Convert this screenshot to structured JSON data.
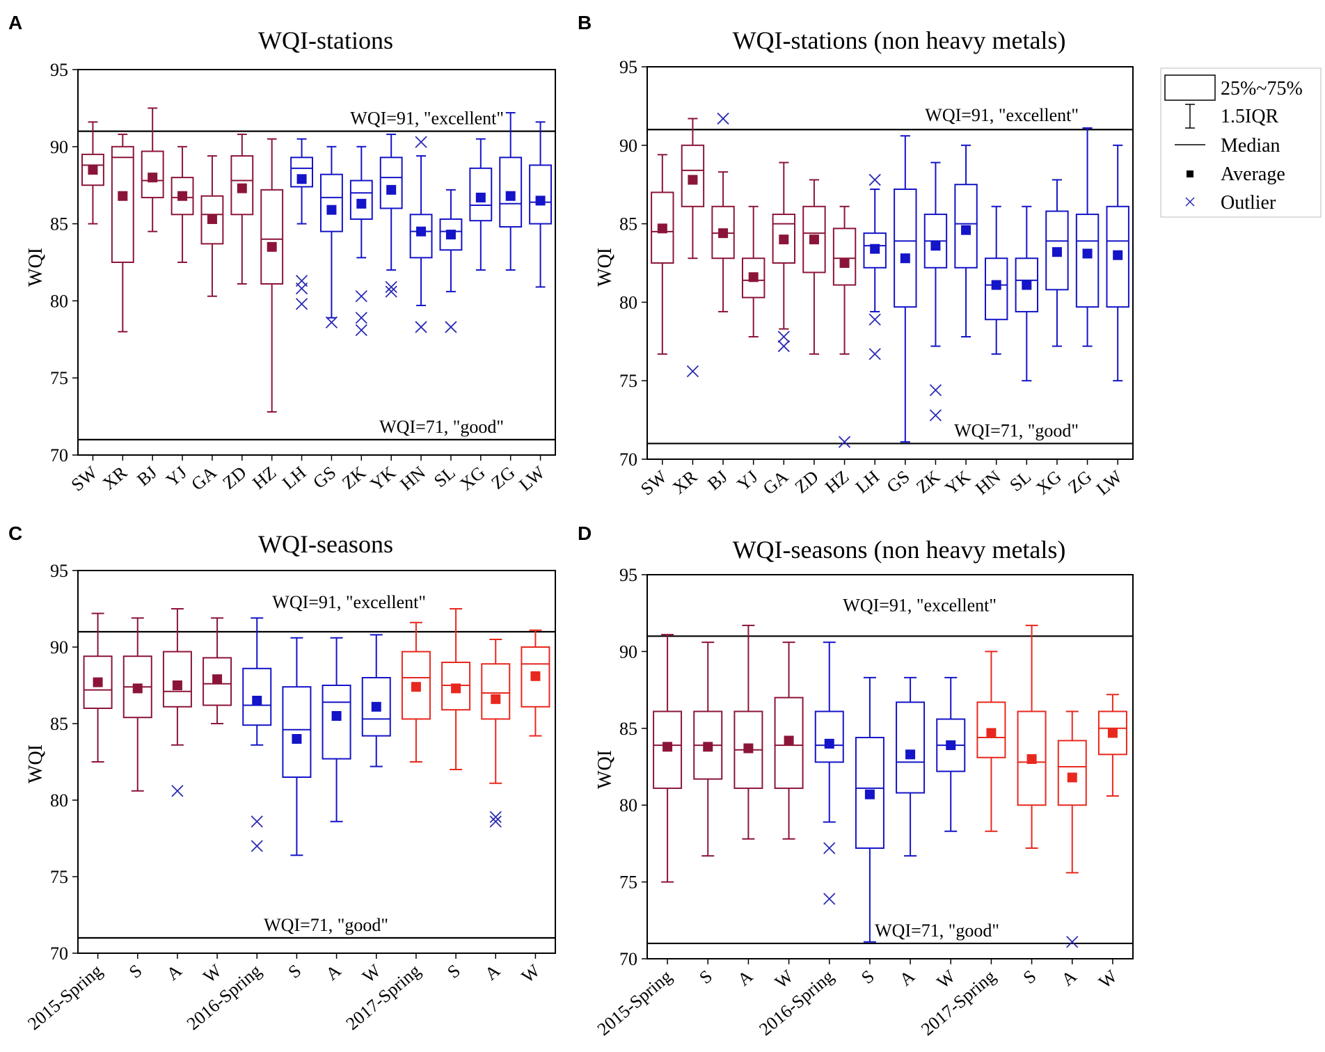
{
  "colors": {
    "group_2015": "#8b1538",
    "group_2016": "#1414c8",
    "group_2017": "#e8281e",
    "outlier": "#2a2ab4",
    "axis": "#000000"
  },
  "legend": {
    "box_label": "25%~75%",
    "whisker_label": "1.5IQR",
    "median_label": "Median",
    "average_label": "Average",
    "outlier_label": "Outlier"
  },
  "chart_data": [
    {
      "panel_label": "A",
      "type": "box",
      "title": "WQI-stations",
      "ylabel": "WQI",
      "xlabel": "",
      "ylim": [
        70,
        95
      ],
      "yticks": [
        70,
        75,
        80,
        85,
        90,
        95
      ],
      "reference_lines": [
        {
          "value": 91,
          "label": "WQI=91, \"excellent\""
        },
        {
          "value": 71,
          "label": "WQI=71, \"good\""
        }
      ],
      "categories": [
        "SW",
        "XR",
        "BJ",
        "YJ",
        "GA",
        "ZD",
        "HZ",
        "LH",
        "GS",
        "ZK",
        "YK",
        "HN",
        "SL",
        "XG",
        "ZG",
        "LW"
      ],
      "groups": [
        "maroon",
        "maroon",
        "maroon",
        "maroon",
        "maroon",
        "maroon",
        "maroon",
        "blue",
        "blue",
        "blue",
        "blue",
        "blue",
        "blue",
        "blue",
        "blue",
        "blue"
      ],
      "boxes": [
        {
          "whisker_low": 85.0,
          "q1": 87.5,
          "median": 88.8,
          "q3": 89.5,
          "whisker_high": 91.6,
          "mean": 88.5,
          "outliers": []
        },
        {
          "whisker_low": 78.0,
          "q1": 82.5,
          "median": 89.3,
          "q3": 90.0,
          "whisker_high": 90.8,
          "mean": 86.8,
          "outliers": []
        },
        {
          "whisker_low": 84.5,
          "q1": 86.7,
          "median": 87.8,
          "q3": 89.7,
          "whisker_high": 92.5,
          "mean": 88.0,
          "outliers": []
        },
        {
          "whisker_low": 82.5,
          "q1": 85.6,
          "median": 86.7,
          "q3": 88.0,
          "whisker_high": 90.0,
          "mean": 86.8,
          "outliers": []
        },
        {
          "whisker_low": 80.3,
          "q1": 83.7,
          "median": 85.6,
          "q3": 86.8,
          "whisker_high": 89.4,
          "mean": 85.3,
          "outliers": []
        },
        {
          "whisker_low": 81.1,
          "q1": 85.6,
          "median": 87.8,
          "q3": 89.4,
          "whisker_high": 90.8,
          "mean": 87.3,
          "outliers": []
        },
        {
          "whisker_low": 72.8,
          "q1": 81.1,
          "median": 84.0,
          "q3": 87.2,
          "whisker_high": 90.5,
          "mean": 83.5,
          "outliers": []
        },
        {
          "whisker_low": 85.0,
          "q1": 87.4,
          "median": 88.6,
          "q3": 89.3,
          "whisker_high": 90.5,
          "mean": 87.9,
          "outliers": [
            81.3,
            80.8,
            79.8
          ]
        },
        {
          "whisker_low": 78.9,
          "q1": 84.5,
          "median": 86.7,
          "q3": 88.2,
          "whisker_high": 90.0,
          "mean": 85.9,
          "outliers": [
            78.6
          ]
        },
        {
          "whisker_low": 82.8,
          "q1": 85.3,
          "median": 87.0,
          "q3": 87.8,
          "whisker_high": 90.0,
          "mean": 86.3,
          "outliers": [
            80.3,
            78.9,
            78.1
          ]
        },
        {
          "whisker_low": 82.0,
          "q1": 86.0,
          "median": 88.0,
          "q3": 89.3,
          "whisker_high": 90.8,
          "mean": 87.2,
          "outliers": [
            80.9,
            80.6
          ]
        },
        {
          "whisker_low": 79.7,
          "q1": 82.8,
          "median": 84.5,
          "q3": 85.6,
          "whisker_high": 89.4,
          "mean": 84.5,
          "outliers": [
            90.3,
            78.3
          ]
        },
        {
          "whisker_low": 80.6,
          "q1": 83.3,
          "median": 84.5,
          "q3": 85.3,
          "whisker_high": 87.2,
          "mean": 84.3,
          "outliers": [
            78.3
          ]
        },
        {
          "whisker_low": 82.0,
          "q1": 85.2,
          "median": 86.2,
          "q3": 88.6,
          "whisker_high": 90.5,
          "mean": 86.7,
          "outliers": []
        },
        {
          "whisker_low": 82.0,
          "q1": 84.8,
          "median": 86.3,
          "q3": 89.3,
          "whisker_high": 92.2,
          "mean": 86.8,
          "outliers": []
        },
        {
          "whisker_low": 80.9,
          "q1": 85.0,
          "median": 86.4,
          "q3": 88.8,
          "whisker_high": 91.6,
          "mean": 86.5,
          "outliers": []
        }
      ]
    },
    {
      "panel_label": "B",
      "type": "box",
      "title": "WQI-stations (non heavy metals)",
      "ylabel": "WQI",
      "xlabel": "",
      "ylim": [
        70,
        95
      ],
      "yticks": [
        70,
        75,
        80,
        85,
        90,
        95
      ],
      "reference_lines": [
        {
          "value": 91,
          "label": "WQI=91, \"excellent\""
        },
        {
          "value": 71,
          "label": "WQI=71, \"good\""
        }
      ],
      "categories": [
        "SW",
        "XR",
        "BJ",
        "YJ",
        "GA",
        "ZD",
        "HZ",
        "LH",
        "GS",
        "ZK",
        "YK",
        "HN",
        "SL",
        "XG",
        "ZG",
        "LW"
      ],
      "groups": [
        "maroon",
        "maroon",
        "maroon",
        "maroon",
        "maroon",
        "maroon",
        "maroon",
        "blue",
        "blue",
        "blue",
        "blue",
        "blue",
        "blue",
        "blue",
        "blue",
        "blue"
      ],
      "boxes": [
        {
          "whisker_low": 76.7,
          "q1": 82.5,
          "median": 84.5,
          "q3": 87.0,
          "whisker_high": 89.4,
          "mean": 84.7,
          "outliers": []
        },
        {
          "whisker_low": 82.8,
          "q1": 86.1,
          "median": 88.4,
          "q3": 90.0,
          "whisker_high": 91.7,
          "mean": 87.8,
          "outliers": [
            75.6
          ]
        },
        {
          "whisker_low": 79.4,
          "q1": 82.8,
          "median": 84.4,
          "q3": 86.1,
          "whisker_high": 88.3,
          "mean": 84.4,
          "outliers": [
            91.7
          ]
        },
        {
          "whisker_low": 77.8,
          "q1": 80.3,
          "median": 81.4,
          "q3": 82.8,
          "whisker_high": 86.1,
          "mean": 81.6,
          "outliers": []
        },
        {
          "whisker_low": 78.3,
          "q1": 82.5,
          "median": 85.0,
          "q3": 85.6,
          "whisker_high": 88.9,
          "mean": 84.0,
          "outliers": [
            77.8,
            77.2
          ]
        },
        {
          "whisker_low": 76.7,
          "q1": 81.9,
          "median": 84.4,
          "q3": 86.1,
          "whisker_high": 87.8,
          "mean": 84.0,
          "outliers": []
        },
        {
          "whisker_low": 76.7,
          "q1": 81.1,
          "median": 82.8,
          "q3": 84.7,
          "whisker_high": 86.1,
          "mean": 82.5,
          "outliers": [
            71.1
          ]
        },
        {
          "whisker_low": 79.4,
          "q1": 82.2,
          "median": 83.6,
          "q3": 84.4,
          "whisker_high": 87.2,
          "mean": 83.4,
          "outliers": [
            87.8,
            78.9,
            76.7
          ]
        },
        {
          "whisker_low": 71.1,
          "q1": 79.7,
          "median": 83.9,
          "q3": 87.2,
          "whisker_high": 90.6,
          "mean": 82.8,
          "outliers": []
        },
        {
          "whisker_low": 77.2,
          "q1": 82.2,
          "median": 83.9,
          "q3": 85.6,
          "whisker_high": 88.9,
          "mean": 83.6,
          "outliers": [
            74.4,
            72.8
          ]
        },
        {
          "whisker_low": 77.8,
          "q1": 82.2,
          "median": 85.0,
          "q3": 87.5,
          "whisker_high": 90.0,
          "mean": 84.6,
          "outliers": []
        },
        {
          "whisker_low": 76.7,
          "q1": 78.9,
          "median": 81.1,
          "q3": 82.8,
          "whisker_high": 86.1,
          "mean": 81.1,
          "outliers": []
        },
        {
          "whisker_low": 75.0,
          "q1": 79.4,
          "median": 81.4,
          "q3": 82.8,
          "whisker_high": 86.1,
          "mean": 81.1,
          "outliers": []
        },
        {
          "whisker_low": 77.2,
          "q1": 80.8,
          "median": 83.9,
          "q3": 85.8,
          "whisker_high": 87.8,
          "mean": 83.2,
          "outliers": []
        },
        {
          "whisker_low": 77.2,
          "q1": 79.7,
          "median": 83.9,
          "q3": 85.6,
          "whisker_high": 91.1,
          "mean": 83.1,
          "outliers": []
        },
        {
          "whisker_low": 75.0,
          "q1": 79.7,
          "median": 83.9,
          "q3": 86.1,
          "whisker_high": 90.0,
          "mean": 83.0,
          "outliers": []
        }
      ]
    },
    {
      "panel_label": "C",
      "type": "box",
      "title": "WQI-seasons",
      "ylabel": "WQI",
      "xlabel": "",
      "ylim": [
        70,
        95
      ],
      "yticks": [
        70,
        75,
        80,
        85,
        90,
        95
      ],
      "reference_lines": [
        {
          "value": 91,
          "label": "WQI=91, \"excellent\""
        },
        {
          "value": 71,
          "label": "WQI=71, \"good\""
        }
      ],
      "categories": [
        "2015-Spring",
        "S",
        "A",
        "W",
        "2016-Spring",
        "S",
        "A",
        "W",
        "2017-Spring",
        "S",
        "A",
        "W"
      ],
      "groups": [
        "maroon",
        "maroon",
        "maroon",
        "maroon",
        "blue",
        "blue",
        "blue",
        "blue",
        "red",
        "red",
        "red",
        "red"
      ],
      "boxes": [
        {
          "whisker_low": 82.5,
          "q1": 86.0,
          "median": 87.2,
          "q3": 89.4,
          "whisker_high": 92.2,
          "mean": 87.7,
          "outliers": []
        },
        {
          "whisker_low": 80.6,
          "q1": 85.4,
          "median": 87.4,
          "q3": 89.4,
          "whisker_high": 91.9,
          "mean": 87.3,
          "outliers": []
        },
        {
          "whisker_low": 83.6,
          "q1": 86.1,
          "median": 87.1,
          "q3": 89.7,
          "whisker_high": 92.5,
          "mean": 87.5,
          "outliers": [
            80.6
          ]
        },
        {
          "whisker_low": 85.0,
          "q1": 86.2,
          "median": 87.6,
          "q3": 89.3,
          "whisker_high": 91.9,
          "mean": 87.9,
          "outliers": []
        },
        {
          "whisker_low": 83.6,
          "q1": 84.9,
          "median": 86.2,
          "q3": 88.6,
          "whisker_high": 91.9,
          "mean": 86.5,
          "outliers": [
            78.6,
            77.0
          ]
        },
        {
          "whisker_low": 76.4,
          "q1": 81.5,
          "median": 84.6,
          "q3": 87.4,
          "whisker_high": 90.6,
          "mean": 84.0,
          "outliers": []
        },
        {
          "whisker_low": 78.6,
          "q1": 82.7,
          "median": 86.4,
          "q3": 87.5,
          "whisker_high": 90.6,
          "mean": 85.5,
          "outliers": []
        },
        {
          "whisker_low": 82.2,
          "q1": 84.2,
          "median": 85.3,
          "q3": 88.0,
          "whisker_high": 90.8,
          "mean": 86.1,
          "outliers": []
        },
        {
          "whisker_low": 82.5,
          "q1": 85.3,
          "median": 88.0,
          "q3": 89.7,
          "whisker_high": 91.6,
          "mean": 87.4,
          "outliers": []
        },
        {
          "whisker_low": 82.0,
          "q1": 85.9,
          "median": 87.5,
          "q3": 89.0,
          "whisker_high": 92.5,
          "mean": 87.3,
          "outliers": []
        },
        {
          "whisker_low": 81.1,
          "q1": 85.3,
          "median": 87.0,
          "q3": 88.9,
          "whisker_high": 90.5,
          "mean": 86.6,
          "outliers": [
            78.9,
            78.6
          ]
        },
        {
          "whisker_low": 84.2,
          "q1": 86.1,
          "median": 88.9,
          "q3": 90.0,
          "whisker_high": 91.1,
          "mean": 88.1,
          "outliers": []
        }
      ]
    },
    {
      "panel_label": "D",
      "type": "box",
      "title": "WQI-seasons (non heavy metals)",
      "ylabel": "WQI",
      "xlabel": "",
      "ylim": [
        70,
        95
      ],
      "yticks": [
        70,
        75,
        80,
        85,
        90,
        95
      ],
      "reference_lines": [
        {
          "value": 91,
          "label": "WQI=91, \"excellent\""
        },
        {
          "value": 71,
          "label": "WQI=71, \"good\""
        }
      ],
      "categories": [
        "2015-Spring",
        "S",
        "A",
        "W",
        "2016-Spring",
        "S",
        "A",
        "W",
        "2017-Spring",
        "S",
        "A",
        "W"
      ],
      "groups": [
        "maroon",
        "maroon",
        "maroon",
        "maroon",
        "blue",
        "blue",
        "blue",
        "blue",
        "red",
        "red",
        "red",
        "red"
      ],
      "boxes": [
        {
          "whisker_low": 75.0,
          "q1": 81.1,
          "median": 83.9,
          "q3": 86.1,
          "whisker_high": 91.1,
          "mean": 83.8,
          "outliers": []
        },
        {
          "whisker_low": 76.7,
          "q1": 81.7,
          "median": 83.9,
          "q3": 86.1,
          "whisker_high": 90.6,
          "mean": 83.8,
          "outliers": []
        },
        {
          "whisker_low": 77.8,
          "q1": 81.1,
          "median": 83.6,
          "q3": 86.1,
          "whisker_high": 91.7,
          "mean": 83.7,
          "outliers": []
        },
        {
          "whisker_low": 77.8,
          "q1": 81.1,
          "median": 83.9,
          "q3": 87.0,
          "whisker_high": 90.6,
          "mean": 84.2,
          "outliers": []
        },
        {
          "whisker_low": 78.9,
          "q1": 82.8,
          "median": 83.9,
          "q3": 86.1,
          "whisker_high": 90.6,
          "mean": 84.0,
          "outliers": [
            77.2,
            73.9
          ]
        },
        {
          "whisker_low": 71.1,
          "q1": 77.2,
          "median": 81.1,
          "q3": 84.4,
          "whisker_high": 88.3,
          "mean": 80.7,
          "outliers": []
        },
        {
          "whisker_low": 76.7,
          "q1": 80.8,
          "median": 82.8,
          "q3": 86.7,
          "whisker_high": 88.3,
          "mean": 83.3,
          "outliers": []
        },
        {
          "whisker_low": 78.3,
          "q1": 82.2,
          "median": 83.9,
          "q3": 85.6,
          "whisker_high": 88.3,
          "mean": 83.9,
          "outliers": []
        },
        {
          "whisker_low": 78.3,
          "q1": 83.1,
          "median": 84.4,
          "q3": 86.7,
          "whisker_high": 90.0,
          "mean": 84.7,
          "outliers": []
        },
        {
          "whisker_low": 77.2,
          "q1": 80.0,
          "median": 82.8,
          "q3": 86.1,
          "whisker_high": 91.7,
          "mean": 83.0,
          "outliers": []
        },
        {
          "whisker_low": 75.6,
          "q1": 80.0,
          "median": 82.5,
          "q3": 84.2,
          "whisker_high": 86.1,
          "mean": 81.8,
          "outliers": [
            71.1
          ]
        },
        {
          "whisker_low": 80.6,
          "q1": 83.3,
          "median": 85.0,
          "q3": 86.1,
          "whisker_high": 87.2,
          "mean": 84.7,
          "outliers": []
        }
      ]
    }
  ]
}
